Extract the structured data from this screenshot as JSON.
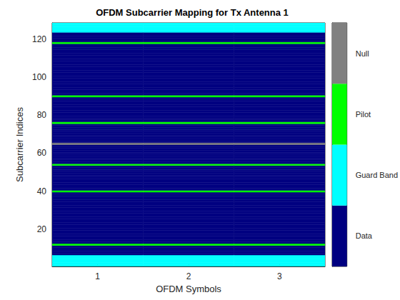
{
  "chart_data": {
    "type": "heatmap",
    "title": "OFDM Subcarrier Mapping for Tx Antenna 1",
    "xlabel": "OFDM Symbols",
    "ylabel": "Subcarrier Indices",
    "x": [
      1,
      2,
      3
    ],
    "y": [
      1,
      2,
      3,
      4,
      5,
      6,
      7,
      8,
      9,
      10,
      11,
      12,
      13,
      14,
      15,
      16,
      17,
      18,
      19,
      20,
      21,
      22,
      23,
      24,
      25,
      26,
      27,
      28,
      29,
      30,
      31,
      32,
      33,
      34,
      35,
      36,
      37,
      38,
      39,
      40,
      41,
      42,
      43,
      44,
      45,
      46,
      47,
      48,
      49,
      50,
      51,
      52,
      53,
      54,
      55,
      56,
      57,
      58,
      59,
      60,
      61,
      62,
      63,
      64,
      65,
      66,
      67,
      68,
      69,
      70,
      71,
      72,
      73,
      74,
      75,
      76,
      77,
      78,
      79,
      80,
      81,
      82,
      83,
      84,
      85,
      86,
      87,
      88,
      89,
      90,
      91,
      92,
      93,
      94,
      95,
      96,
      97,
      98,
      99,
      100,
      101,
      102,
      103,
      104,
      105,
      106,
      107,
      108,
      109,
      110,
      111,
      112,
      113,
      114,
      115,
      116,
      117,
      118,
      119,
      120,
      121,
      122,
      123,
      124,
      125,
      126,
      127,
      128
    ],
    "cells": [
      [
        1,
        1,
        1,
        1,
        1,
        1,
        0,
        0,
        0,
        0,
        0,
        2,
        0,
        0,
        0,
        0,
        0,
        0,
        0,
        0,
        0,
        0,
        0,
        0,
        0,
        0,
        0,
        0,
        0,
        0,
        0,
        0,
        0,
        0,
        0,
        0,
        0,
        0,
        0,
        2,
        0,
        0,
        0,
        0,
        0,
        0,
        0,
        0,
        0,
        0,
        0,
        0,
        0,
        2,
        0,
        0,
        0,
        0,
        0,
        0,
        0,
        0,
        0,
        0,
        3,
        0,
        0,
        0,
        0,
        0,
        0,
        0,
        0,
        0,
        0,
        2,
        0,
        0,
        0,
        0,
        0,
        0,
        0,
        0,
        0,
        0,
        0,
        0,
        0,
        2,
        0,
        0,
        0,
        0,
        0,
        0,
        0,
        0,
        0,
        0,
        0,
        0,
        0,
        0,
        0,
        0,
        0,
        0,
        0,
        0,
        0,
        0,
        0,
        0,
        0,
        0,
        0,
        2,
        0,
        0,
        0,
        0,
        0,
        1,
        1,
        1,
        1,
        1
      ],
      [
        1,
        1,
        1,
        1,
        1,
        1,
        0,
        0,
        0,
        0,
        0,
        2,
        0,
        0,
        0,
        0,
        0,
        0,
        0,
        0,
        0,
        0,
        0,
        0,
        0,
        0,
        0,
        0,
        0,
        0,
        0,
        0,
        0,
        0,
        0,
        0,
        0,
        0,
        0,
        2,
        0,
        0,
        0,
        0,
        0,
        0,
        0,
        0,
        0,
        0,
        0,
        0,
        0,
        2,
        0,
        0,
        0,
        0,
        0,
        0,
        0,
        0,
        0,
        0,
        3,
        0,
        0,
        0,
        0,
        0,
        0,
        0,
        0,
        0,
        0,
        2,
        0,
        0,
        0,
        0,
        0,
        0,
        0,
        0,
        0,
        0,
        0,
        0,
        0,
        2,
        0,
        0,
        0,
        0,
        0,
        0,
        0,
        0,
        0,
        0,
        0,
        0,
        0,
        0,
        0,
        0,
        0,
        0,
        0,
        0,
        0,
        0,
        0,
        0,
        0,
        0,
        0,
        2,
        0,
        0,
        0,
        0,
        0,
        1,
        1,
        1,
        1,
        1
      ],
      [
        1,
        1,
        1,
        1,
        1,
        1,
        0,
        0,
        0,
        0,
        0,
        2,
        0,
        0,
        0,
        0,
        0,
        0,
        0,
        0,
        0,
        0,
        0,
        0,
        0,
        0,
        0,
        0,
        0,
        0,
        0,
        0,
        0,
        0,
        0,
        0,
        0,
        0,
        0,
        2,
        0,
        0,
        0,
        0,
        0,
        0,
        0,
        0,
        0,
        0,
        0,
        0,
        0,
        2,
        0,
        0,
        0,
        0,
        0,
        0,
        0,
        0,
        0,
        0,
        3,
        0,
        0,
        0,
        0,
        0,
        0,
        0,
        0,
        0,
        0,
        2,
        0,
        0,
        0,
        0,
        0,
        0,
        0,
        0,
        0,
        0,
        0,
        0,
        0,
        2,
        0,
        0,
        0,
        0,
        0,
        0,
        0,
        0,
        0,
        0,
        0,
        0,
        0,
        0,
        0,
        0,
        0,
        0,
        0,
        0,
        0,
        0,
        0,
        0,
        0,
        0,
        0,
        2,
        0,
        0,
        0,
        0,
        0,
        1,
        1,
        1,
        1,
        1
      ]
    ],
    "xlim": [
      0.5,
      3.5
    ],
    "xticks": [
      1,
      2,
      3
    ],
    "ylim": [
      0.5,
      128.5
    ],
    "yticks": [
      20,
      40,
      60,
      80,
      100,
      120
    ],
    "colorbar": {
      "labels": [
        "Data",
        "Guard Band",
        "Pilot",
        "Null"
      ],
      "colors": [
        "#000080",
        "#00ffff",
        "#00ff00",
        "#808080"
      ]
    }
  }
}
